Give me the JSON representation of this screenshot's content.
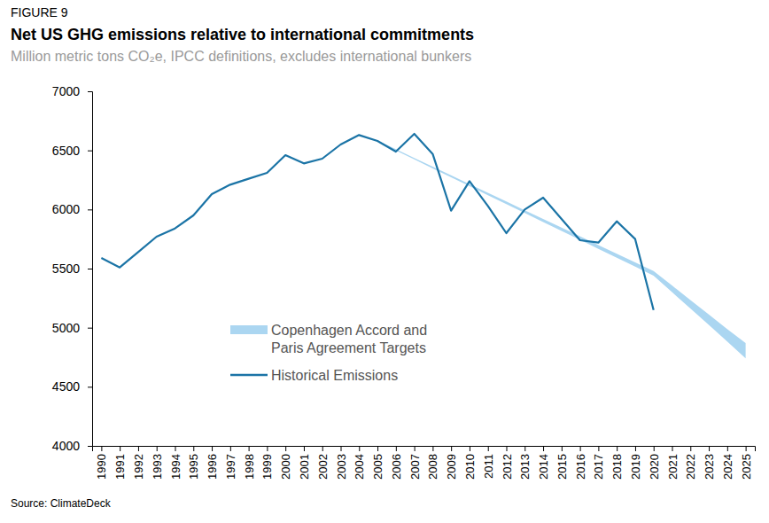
{
  "chart_data": {
    "type": "line",
    "figure_label": "FIGURE 9",
    "title": "Net US GHG emissions relative to international commitments",
    "subtitle": "Million metric tons CO₂e, IPCC definitions, excludes international bunkers",
    "source": "Source: ClimateDeck",
    "x": [
      1990,
      1991,
      1992,
      1993,
      1994,
      1995,
      1996,
      1997,
      1998,
      1999,
      2000,
      2001,
      2002,
      2003,
      2004,
      2005,
      2006,
      2007,
      2008,
      2009,
      2010,
      2011,
      2012,
      2013,
      2014,
      2015,
      2016,
      2017,
      2018,
      2019,
      2020,
      2021,
      2022,
      2023,
      2024,
      2025
    ],
    "xlim": [
      1989.5,
      2025.5
    ],
    "xticks": [
      1990,
      1991,
      1992,
      1993,
      1994,
      1995,
      1996,
      1997,
      1998,
      1999,
      2000,
      2001,
      2002,
      2003,
      2004,
      2005,
      2006,
      2007,
      2008,
      2009,
      2010,
      2011,
      2012,
      2013,
      2014,
      2015,
      2016,
      2017,
      2018,
      2019,
      2020,
      2021,
      2022,
      2023,
      2024,
      2025
    ],
    "ylim": [
      4000,
      7000
    ],
    "yticks": [
      4000,
      4500,
      5000,
      5500,
      6000,
      6500,
      7000
    ],
    "grid": false,
    "legend": "lower center",
    "series": [
      {
        "name": "Copenhagen Accord and\nParis Agreement Targets",
        "type": "band",
        "color": "#abd6f1",
        "upper": [
          null,
          null,
          null,
          null,
          null,
          null,
          null,
          null,
          null,
          null,
          null,
          null,
          null,
          null,
          null,
          6583,
          6510,
          6436,
          6362,
          6289,
          6215,
          6141,
          6068,
          5994,
          5920,
          5847,
          5773,
          5699,
          5626,
          5552,
          5480,
          5357,
          5234,
          5111,
          4988,
          4870
        ],
        "lower": [
          null,
          null,
          null,
          null,
          null,
          null,
          null,
          null,
          null,
          null,
          null,
          null,
          null,
          null,
          null,
          6577,
          6500,
          6424,
          6348,
          6273,
          6197,
          6121,
          6046,
          5970,
          5894,
          5819,
          5743,
          5667,
          5592,
          5516,
          5440,
          5301,
          5162,
          5023,
          4884,
          4740
        ]
      },
      {
        "name": "Historical Emissions",
        "type": "line",
        "color": "#1b74a6",
        "values": [
          5590,
          5510,
          5640,
          5770,
          5840,
          5950,
          6130,
          6210,
          6260,
          6310,
          6460,
          6390,
          6430,
          6550,
          6630,
          6580,
          6490,
          6640,
          6470,
          5990,
          6240,
          6030,
          5800,
          6000,
          6100,
          5920,
          5740,
          5720,
          5900,
          5750,
          5150,
          null,
          null,
          null,
          null,
          null
        ]
      }
    ]
  }
}
